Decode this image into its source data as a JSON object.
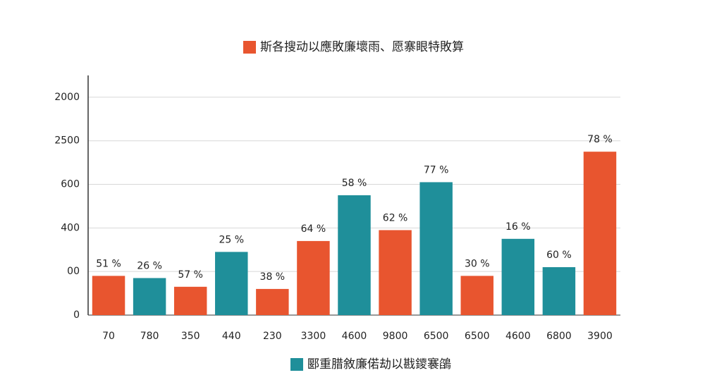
{
  "chart_data": {
    "type": "bar",
    "categories": [
      "70",
      "780",
      "350",
      "440",
      "230",
      "3300",
      "4600",
      "9800",
      "6500",
      "6500",
      "4600",
      "6800",
      "3900"
    ],
    "series": [
      {
        "name": "斯各搜动以應敗廉壞雨、愿寨眼特敗算",
        "color": "#e8552f",
        "values": [
          180,
          null,
          130,
          null,
          120,
          340,
          null,
          390,
          null,
          180,
          null,
          null,
          750
        ],
        "annotations": [
          "51 %",
          null,
          "57 %",
          null,
          "38 %",
          "64 %",
          null,
          "62 %",
          null,
          "30 %",
          null,
          null,
          "78 %"
        ]
      },
      {
        "name": "郾重腊敘廉偌劫以戡鑁褰鵮",
        "color": "#1f8f9a",
        "values": [
          null,
          170,
          null,
          290,
          null,
          null,
          550,
          null,
          610,
          null,
          350,
          220,
          null
        ],
        "annotations": [
          null,
          "26 %",
          null,
          "25 %",
          null,
          null,
          "58 %",
          null,
          "77 %",
          null,
          "16 %",
          "60 %",
          null
        ]
      }
    ],
    "ylim": [
      0,
      1100
    ],
    "yticks": [
      {
        "value": 0,
        "label": "0"
      },
      {
        "value": 200,
        "label": "00"
      },
      400,
      600,
      {
        "value": 800,
        "label": "2500"
      },
      {
        "value": 1000,
        "label": "2000"
      }
    ],
    "grid": true
  }
}
